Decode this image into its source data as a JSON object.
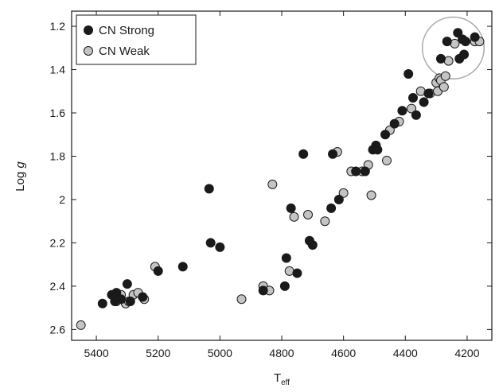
{
  "chart_data": {
    "type": "scatter",
    "title": "",
    "xlabel": "T",
    "xlabel_sub": "eff",
    "ylabel_prefix": "Log ",
    "ylabel_var": "g",
    "xlim": [
      5480,
      4120
    ],
    "ylim": [
      2.65,
      1.13
    ],
    "x_reversed": true,
    "y_reversed": true,
    "xticks": [
      5400,
      5200,
      5000,
      4800,
      4600,
      4400,
      4200
    ],
    "yticks": [
      1.2,
      1.4,
      1.6,
      1.8,
      2,
      2.2,
      2.4,
      2.6
    ],
    "grid": false,
    "legend_position": "top-left",
    "series": [
      {
        "name": "CN Strong",
        "color": "#1a1a1a",
        "points": [
          [
            5380,
            2.48
          ],
          [
            5350,
            2.44
          ],
          [
            5340,
            2.47
          ],
          [
            5335,
            2.43
          ],
          [
            5320,
            2.46
          ],
          [
            5300,
            2.39
          ],
          [
            5290,
            2.47
          ],
          [
            5250,
            2.45
          ],
          [
            5200,
            2.33
          ],
          [
            5120,
            2.31
          ],
          [
            5035,
            1.95
          ],
          [
            5030,
            2.2
          ],
          [
            5000,
            2.22
          ],
          [
            4860,
            2.42
          ],
          [
            4790,
            2.4
          ],
          [
            4785,
            2.27
          ],
          [
            4770,
            2.04
          ],
          [
            4750,
            2.34
          ],
          [
            4730,
            1.79
          ],
          [
            4710,
            2.19
          ],
          [
            4700,
            2.21
          ],
          [
            4640,
            2.04
          ],
          [
            4635,
            1.79
          ],
          [
            4615,
            2.0
          ],
          [
            4560,
            1.87
          ],
          [
            4530,
            1.87
          ],
          [
            4505,
            1.77
          ],
          [
            4495,
            1.75
          ],
          [
            4490,
            1.77
          ],
          [
            4465,
            1.7
          ],
          [
            4435,
            1.65
          ],
          [
            4410,
            1.59
          ],
          [
            4390,
            1.42
          ],
          [
            4375,
            1.53
          ],
          [
            4365,
            1.61
          ],
          [
            4340,
            1.55
          ],
          [
            4325,
            1.51
          ],
          [
            4285,
            1.35
          ],
          [
            4265,
            1.27
          ],
          [
            4230,
            1.23
          ],
          [
            4225,
            1.35
          ],
          [
            4215,
            1.26
          ],
          [
            4210,
            1.33
          ],
          [
            4205,
            1.27
          ],
          [
            4175,
            1.25
          ]
        ]
      },
      {
        "name": "CN Weak",
        "color": "#c4c4c4",
        "points": [
          [
            5450,
            2.58
          ],
          [
            5335,
            2.47
          ],
          [
            5320,
            2.44
          ],
          [
            5305,
            2.48
          ],
          [
            5295,
            2.47
          ],
          [
            5280,
            2.44
          ],
          [
            5265,
            2.43
          ],
          [
            5245,
            2.46
          ],
          [
            5210,
            2.31
          ],
          [
            4930,
            2.46
          ],
          [
            4860,
            2.4
          ],
          [
            4840,
            2.42
          ],
          [
            4830,
            1.93
          ],
          [
            4775,
            2.33
          ],
          [
            4760,
            2.08
          ],
          [
            4715,
            2.07
          ],
          [
            4660,
            2.1
          ],
          [
            4620,
            1.78
          ],
          [
            4600,
            1.97
          ],
          [
            4575,
            1.87
          ],
          [
            4540,
            1.87
          ],
          [
            4520,
            1.84
          ],
          [
            4510,
            1.98
          ],
          [
            4460,
            1.82
          ],
          [
            4450,
            1.68
          ],
          [
            4420,
            1.64
          ],
          [
            4380,
            1.58
          ],
          [
            4350,
            1.5
          ],
          [
            4320,
            1.51
          ],
          [
            4300,
            1.46
          ],
          [
            4295,
            1.5
          ],
          [
            4290,
            1.44
          ],
          [
            4285,
            1.45
          ],
          [
            4275,
            1.48
          ],
          [
            4270,
            1.43
          ],
          [
            4260,
            1.36
          ],
          [
            4240,
            1.28
          ],
          [
            4175,
            1.27
          ],
          [
            4160,
            1.27
          ]
        ]
      }
    ],
    "highlight_circle": {
      "x": 4245,
      "y": 1.3,
      "radius_x_units": 100
    }
  }
}
